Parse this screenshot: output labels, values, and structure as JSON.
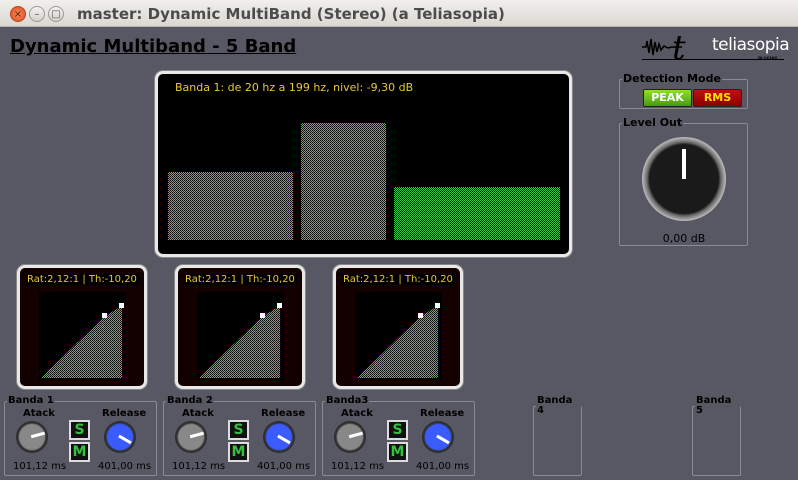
{
  "window": {
    "title": "master: Dynamic MultiBand (Stereo) (a Teliasopia)",
    "close": "×",
    "minimize": "–",
    "maximize": "□"
  },
  "app": {
    "title": "Dynamic Multiband - 5 Band"
  },
  "logo": {
    "mark": "t",
    "name": "teliasopia",
    "sub": "PLUGINS"
  },
  "spectrum": {
    "label": "Banda 1: de 20 hz a 199 hz, nivel: -9,30 dB",
    "levels": [
      0.46,
      0.79,
      0.36
    ],
    "bar_color": "#3ccc48"
  },
  "detection": {
    "legend": "Detection Mode",
    "peak": "PEAK",
    "rms": "RMS",
    "peak_color": "#6cc020",
    "rms_color": "#b00000"
  },
  "level_out": {
    "legend": "Level Out",
    "value": "0,00 dB"
  },
  "compressors": [
    {
      "label": "Rat:2,12:1 | Th:-10,20"
    },
    {
      "label": "Rat:2,12:1 | Th:-10,20"
    },
    {
      "label": "Rat:2,12:1 | Th:-10,20"
    }
  ],
  "bands": [
    {
      "name": "Banda 1",
      "atack_label": "Atack",
      "release_label": "Release",
      "solo": "S",
      "mute": "M",
      "atack": "101,12 ms",
      "release": "401,00 ms"
    },
    {
      "name": "Banda 2",
      "atack_label": "Atack",
      "release_label": "Release",
      "solo": "S",
      "mute": "M",
      "atack": "101,12 ms",
      "release": "401,00 ms"
    },
    {
      "name": "Banda3",
      "atack_label": "Atack",
      "release_label": "Release",
      "solo": "S",
      "mute": "M",
      "atack": "101,12 ms",
      "release": "401,00 ms"
    },
    {
      "name": "Banda 4"
    },
    {
      "name": "Banda 5"
    }
  ]
}
